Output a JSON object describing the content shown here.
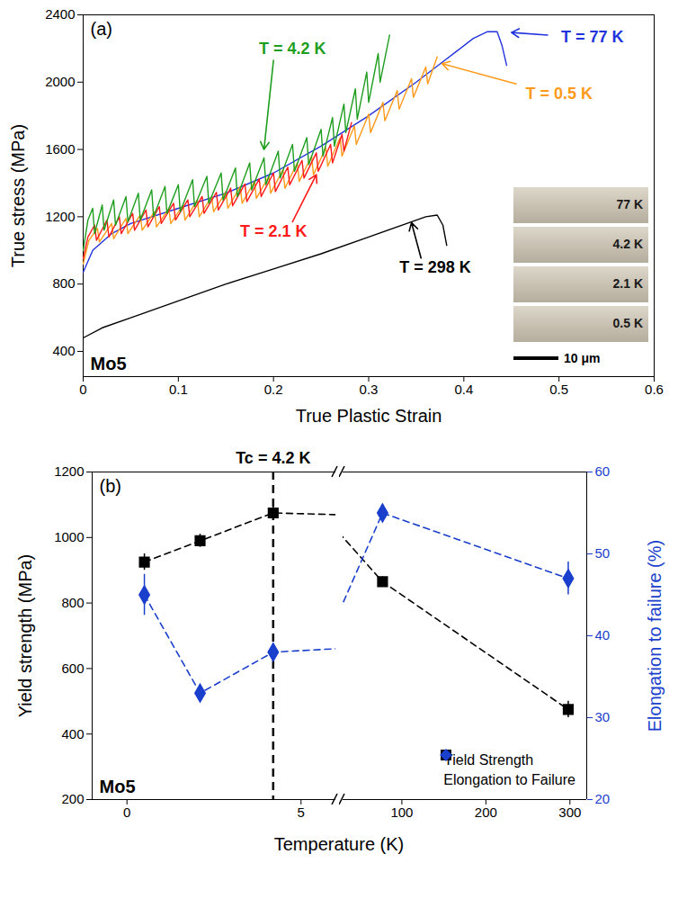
{
  "chart_data": [
    {
      "type": "line",
      "panel_label": "(a)",
      "sample_label": "Mo5",
      "x_label": "True Plastic Strain",
      "y_label": "True stress (MPa)",
      "xlim": [
        0,
        0.6
      ],
      "xticks": [
        0,
        0.1,
        0.2,
        0.3,
        0.4,
        0.5,
        0.6
      ],
      "ylim": [
        250,
        2400
      ],
      "yticks": [
        400,
        800,
        1200,
        1600,
        2000,
        2400
      ],
      "series": [
        {
          "name": "T = 298 K",
          "color": "#000000",
          "x": [
            0,
            0.02,
            0.05,
            0.1,
            0.15,
            0.2,
            0.25,
            0.3,
            0.34,
            0.36,
            0.372,
            0.378,
            0.382
          ],
          "values": [
            480,
            540,
            600,
            700,
            800,
            890,
            980,
            1080,
            1160,
            1200,
            1210,
            1150,
            1030
          ],
          "label_at": [
            0.37,
            900
          ],
          "arrow": [
            [
              0.355,
              955
            ],
            [
              0.345,
              1165
            ]
          ]
        },
        {
          "name": "T = 77 K",
          "color": "#2233dd",
          "x": [
            0,
            0.01,
            0.03,
            0.05,
            0.1,
            0.15,
            0.2,
            0.25,
            0.3,
            0.35,
            0.38,
            0.41,
            0.425,
            0.435,
            0.44,
            0.445
          ],
          "values": [
            870,
            1000,
            1100,
            1160,
            1250,
            1340,
            1460,
            1620,
            1800,
            2000,
            2130,
            2260,
            2300,
            2300,
            2220,
            2100
          ],
          "label_at": [
            0.535,
            2270
          ],
          "arrow": [
            [
              0.488,
              2280
            ],
            [
              0.45,
              2295
            ]
          ]
        },
        {
          "name": "T = 0.5 K",
          "color": "#ff9a1a",
          "x": [
            0,
            0.006,
            0.015,
            0.017,
            0.03,
            0.032,
            0.045,
            0.047,
            0.06,
            0.062,
            0.075,
            0.077,
            0.09,
            0.092,
            0.105,
            0.107,
            0.12,
            0.122,
            0.135,
            0.137,
            0.15,
            0.152,
            0.165,
            0.167,
            0.18,
            0.182,
            0.195,
            0.197,
            0.21,
            0.212,
            0.225,
            0.227,
            0.24,
            0.242,
            0.255,
            0.257,
            0.27,
            0.272,
            0.285,
            0.287,
            0.3,
            0.302,
            0.315,
            0.317,
            0.33,
            0.332,
            0.345,
            0.347,
            0.36,
            0.362,
            0.372
          ],
          "values": [
            920,
            1060,
            1130,
            1050,
            1160,
            1070,
            1190,
            1100,
            1210,
            1120,
            1230,
            1140,
            1250,
            1160,
            1270,
            1180,
            1300,
            1200,
            1320,
            1230,
            1350,
            1250,
            1380,
            1280,
            1410,
            1310,
            1440,
            1340,
            1480,
            1370,
            1520,
            1410,
            1560,
            1450,
            1610,
            1500,
            1670,
            1560,
            1740,
            1630,
            1810,
            1700,
            1880,
            1770,
            1950,
            1840,
            2020,
            1910,
            2090,
            1990,
            2150
          ],
          "label_at": [
            0.5,
            1930
          ],
          "arrow": [
            [
              0.455,
              1990
            ],
            [
              0.377,
              2110
            ]
          ]
        },
        {
          "name": "T = 2.1 K",
          "color": "#ff1a1a",
          "x": [
            0,
            0.005,
            0.012,
            0.014,
            0.025,
            0.027,
            0.038,
            0.04,
            0.052,
            0.054,
            0.066,
            0.068,
            0.08,
            0.082,
            0.095,
            0.097,
            0.11,
            0.112,
            0.125,
            0.127,
            0.14,
            0.142,
            0.155,
            0.157,
            0.17,
            0.172,
            0.185,
            0.187,
            0.2,
            0.202,
            0.215,
            0.217,
            0.23,
            0.232,
            0.245,
            0.247,
            0.26,
            0.262,
            0.272,
            0.274,
            0.282
          ],
          "values": [
            950,
            1080,
            1150,
            1060,
            1180,
            1080,
            1200,
            1100,
            1220,
            1120,
            1240,
            1140,
            1260,
            1160,
            1280,
            1180,
            1300,
            1200,
            1320,
            1220,
            1345,
            1240,
            1370,
            1265,
            1395,
            1290,
            1425,
            1320,
            1460,
            1350,
            1495,
            1390,
            1535,
            1430,
            1580,
            1470,
            1630,
            1520,
            1690,
            1590,
            1760
          ],
          "label_at": [
            0.2,
            1110
          ],
          "arrow": [
            [
              0.22,
              1170
            ],
            [
              0.245,
              1450
            ]
          ]
        },
        {
          "name": "T = 4.2 K",
          "color": "#1e9e1e",
          "x": [
            0,
            0.005,
            0.01,
            0.012,
            0.02,
            0.022,
            0.032,
            0.034,
            0.045,
            0.047,
            0.058,
            0.06,
            0.072,
            0.074,
            0.086,
            0.088,
            0.1,
            0.102,
            0.115,
            0.117,
            0.13,
            0.132,
            0.145,
            0.147,
            0.16,
            0.162,
            0.175,
            0.177,
            0.19,
            0.192,
            0.205,
            0.207,
            0.22,
            0.222,
            0.235,
            0.237,
            0.25,
            0.252,
            0.262,
            0.264,
            0.274,
            0.276,
            0.286,
            0.288,
            0.298,
            0.3,
            0.31,
            0.312,
            0.322
          ],
          "values": [
            1000,
            1180,
            1250,
            1100,
            1270,
            1120,
            1300,
            1150,
            1320,
            1170,
            1340,
            1180,
            1360,
            1200,
            1380,
            1220,
            1390,
            1230,
            1420,
            1260,
            1440,
            1280,
            1460,
            1300,
            1490,
            1320,
            1520,
            1360,
            1550,
            1390,
            1590,
            1430,
            1630,
            1470,
            1670,
            1510,
            1720,
            1560,
            1790,
            1620,
            1870,
            1700,
            1960,
            1780,
            2060,
            1880,
            2170,
            2000,
            2280
          ],
          "label_at": [
            0.22,
            2200
          ],
          "arrow": [
            [
              0.2,
              2130
            ],
            [
              0.19,
              1600
            ]
          ]
        }
      ],
      "inset": {
        "labels": [
          "77 K",
          "4.2 K",
          "2.1 K",
          "0.5 K"
        ],
        "scale_bar": "10 μm"
      }
    },
    {
      "type": "line",
      "panel_label": "(b)",
      "sample_label": "Mo5",
      "x_label": "Temperature (K)",
      "y_label": "Yield strength (MPa)",
      "y2_label": "Elongation to failure (%)",
      "x_segments": [
        {
          "xlim": [
            -1,
            6
          ],
          "xticks": [
            0,
            5
          ]
        },
        {
          "xlim": [
            30,
            320
          ],
          "xticks": [
            100,
            200,
            300
          ]
        }
      ],
      "ylim": [
        200,
        1200
      ],
      "yticks": [
        200,
        400,
        600,
        800,
        1000,
        1200
      ],
      "y2lim": [
        20,
        60
      ],
      "y2ticks": [
        20,
        30,
        40,
        50,
        60
      ],
      "legend": "bottom-right",
      "line_style": "dashed",
      "series": [
        {
          "name": "Yield Strength",
          "color": "#000000",
          "marker": "square",
          "x": [
            0.5,
            2.1,
            4.2,
            77,
            298
          ],
          "values": [
            925,
            990,
            1075,
            865,
            475
          ],
          "errors": [
            25,
            20,
            20,
            15,
            25
          ]
        },
        {
          "name": "Elongation to Failure",
          "color": "#1a3fcc",
          "marker": "diamond",
          "axis": "y2",
          "x": [
            0.5,
            2.1,
            4.2,
            77,
            298
          ],
          "values": [
            45,
            33,
            38,
            55,
            47
          ],
          "errors": [
            2.5,
            1,
            1,
            1,
            2
          ]
        }
      ],
      "annotations": [
        {
          "text": "Tc = 4.2 K",
          "x": 4.2
        }
      ]
    }
  ]
}
